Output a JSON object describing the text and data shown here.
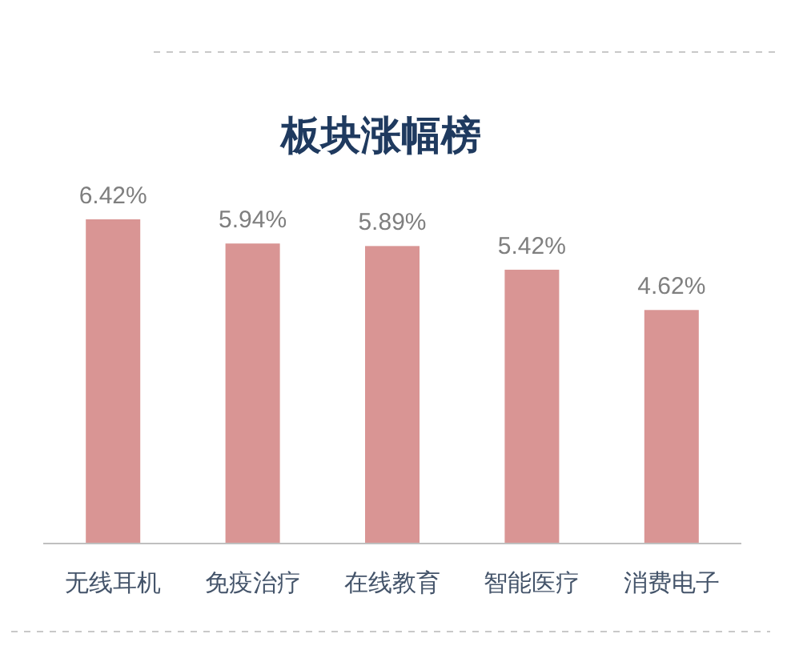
{
  "chart_data": {
    "type": "bar",
    "title": "板块涨幅榜",
    "categories": [
      "无线耳机",
      "免疫治疗",
      "在线教育",
      "智能医疗",
      "消费电子"
    ],
    "values": [
      6.42,
      5.94,
      5.89,
      5.42,
      4.62
    ],
    "value_labels": [
      "6.42%",
      "5.94%",
      "5.89%",
      "5.42%",
      "4.62%"
    ],
    "color": "#d99594"
  }
}
